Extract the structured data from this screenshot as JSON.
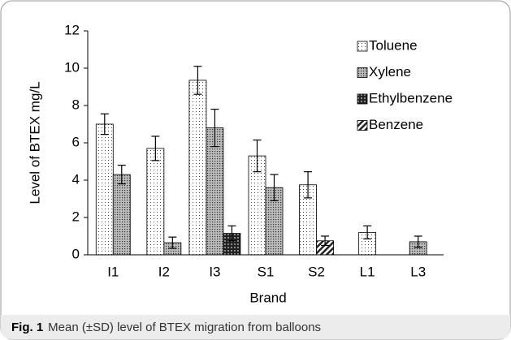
{
  "chart_data": {
    "type": "bar",
    "categories": [
      "I1",
      "I2",
      "I3",
      "S1",
      "S2",
      "L1",
      "L3"
    ],
    "series": [
      {
        "name": "Toluene",
        "pattern": "sparse-dots",
        "values": [
          7.0,
          5.7,
          9.35,
          5.3,
          3.75,
          1.2,
          null
        ],
        "errors": [
          0.55,
          0.65,
          0.75,
          0.85,
          0.7,
          0.35,
          null
        ]
      },
      {
        "name": "Xylene",
        "pattern": "dense-dots",
        "values": [
          4.3,
          0.65,
          6.8,
          3.6,
          null,
          null,
          0.7
        ],
        "errors": [
          0.5,
          0.3,
          1.0,
          0.7,
          null,
          null,
          0.3
        ]
      },
      {
        "name": "Ethylbenzene",
        "pattern": "checker",
        "values": [
          null,
          null,
          1.15,
          null,
          null,
          null,
          null
        ],
        "errors": [
          null,
          null,
          0.4,
          null,
          null,
          null,
          null
        ]
      },
      {
        "name": "Benzene",
        "pattern": "diagonal",
        "values": [
          null,
          null,
          null,
          null,
          0.75,
          null,
          null
        ],
        "errors": [
          null,
          null,
          null,
          null,
          0.25,
          null,
          null
        ]
      }
    ],
    "ylim": [
      0,
      12
    ],
    "yticks": [
      0,
      2,
      4,
      6,
      8,
      10,
      12
    ],
    "ylabel": "Level of BTEX mg/L",
    "xlabel": "Brand",
    "legend": "top-right"
  },
  "caption": {
    "label": "Fig. 1",
    "text": "Mean (±SD) level of BTEX migration from balloons"
  }
}
